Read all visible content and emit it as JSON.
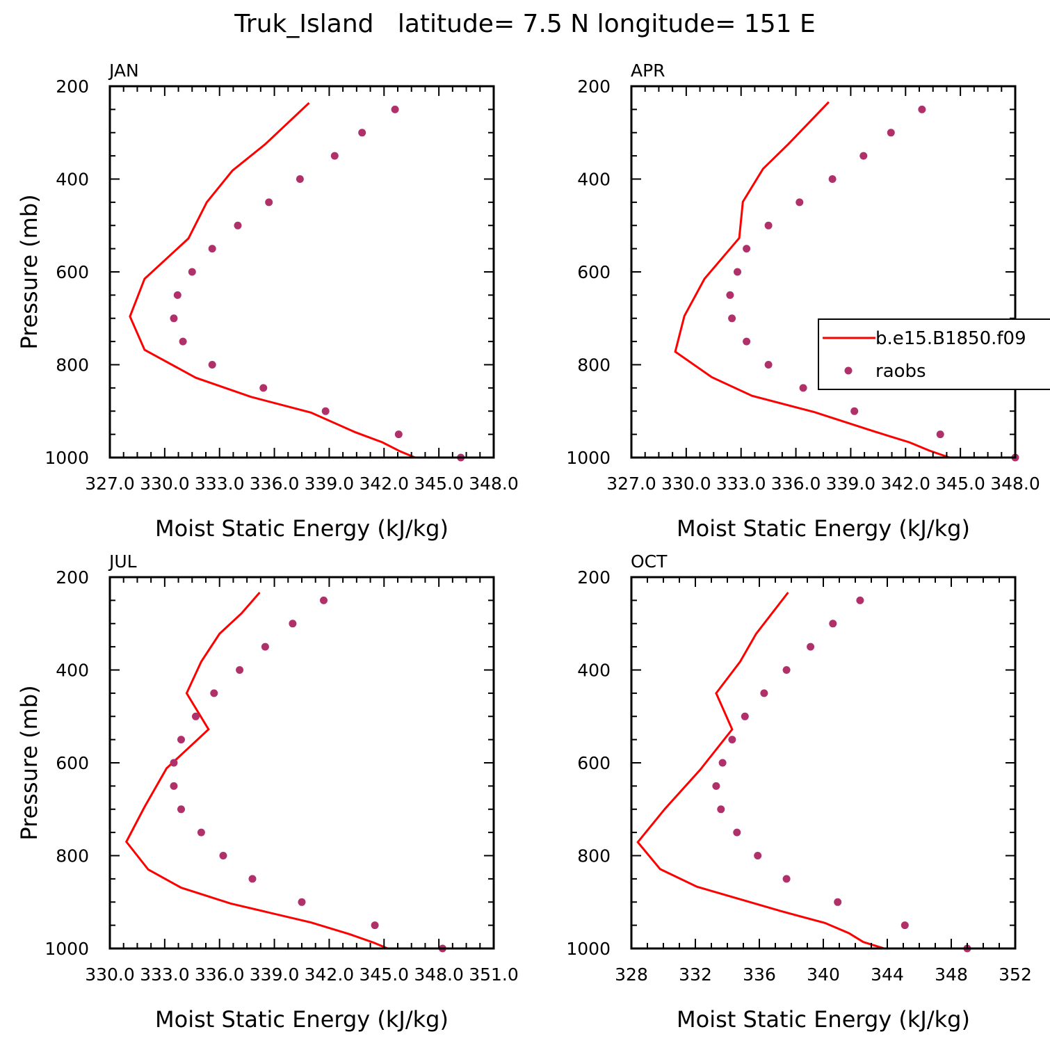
{
  "figure": {
    "title": "Truk_Island   latitude= 7.5 N longitude= 151 E"
  },
  "colors": {
    "model_line": "#ff0000",
    "obs_marker": "#b0306a",
    "axis": "#000000"
  },
  "legend": {
    "model": "b.e15.B1850.f09",
    "obs": "raobs"
  },
  "chart_data": [
    {
      "type": "line",
      "panel": "JAN",
      "xlabel": "Moist Static Energy (kJ/kg)",
      "ylabel": "Pressure (mb)",
      "xlim": [
        327,
        348
      ],
      "ylim": [
        200,
        1000
      ],
      "y_inverted": true,
      "xtick_labels": [
        "327.0",
        "330.0",
        "333.0",
        "336.0",
        "339.0",
        "342.0",
        "345.0",
        "348.0"
      ],
      "ytick_labels": [
        "200",
        "400",
        "600",
        "800",
        "1000"
      ],
      "series": [
        {
          "name": "b.e15.B1850.f09",
          "kind": "line",
          "x": [
            337.9,
            335.5,
            333.7,
            332.3,
            331.3,
            328.9,
            328.1,
            328.9,
            331.7,
            334.7,
            338.0,
            340.4,
            341.9,
            342.9,
            343.7
          ],
          "y": [
            236,
            325,
            382,
            450,
            528,
            615,
            696,
            768,
            828,
            869,
            903,
            945,
            967,
            987,
            1000
          ]
        },
        {
          "name": "raobs",
          "kind": "scatter",
          "x": [
            342.6,
            340.8,
            339.3,
            337.4,
            335.7,
            334.0,
            332.6,
            331.5,
            330.7,
            330.5,
            331.0,
            332.6,
            335.4,
            338.8,
            342.8,
            346.2
          ],
          "y": [
            250,
            300,
            350,
            400,
            450,
            500,
            550,
            600,
            650,
            700,
            750,
            800,
            850,
            900,
            950,
            1000
          ]
        }
      ]
    },
    {
      "type": "line",
      "panel": "APR",
      "xlabel": "Moist Static Energy (kJ/kg)",
      "ylabel": "Pressure (mb)",
      "xlim": [
        327,
        348
      ],
      "ylim": [
        200,
        1000
      ],
      "y_inverted": true,
      "xtick_labels": [
        "327.0",
        "330.0",
        "333.0",
        "336.0",
        "339.0",
        "342.0",
        "345.0",
        "348.0"
      ],
      "ytick_labels": [
        "200",
        "400",
        "600",
        "800",
        "1000"
      ],
      "series": [
        {
          "name": "b.e15.B1850.f09",
          "kind": "line",
          "x": [
            337.8,
            335.6,
            334.2,
            333.1,
            332.9,
            331.0,
            329.9,
            329.4,
            331.4,
            333.6,
            337.0,
            340.3,
            342.2,
            343.3,
            344.4
          ],
          "y": [
            234,
            324,
            378,
            449,
            527,
            615,
            695,
            772,
            827,
            867,
            902,
            944,
            967,
            985,
            1000
          ]
        },
        {
          "name": "raobs",
          "kind": "scatter",
          "x": [
            342.9,
            341.2,
            339.7,
            338.0,
            336.2,
            334.5,
            333.3,
            332.8,
            332.4,
            332.5,
            333.3,
            334.5,
            336.4,
            339.2,
            343.9,
            348.0
          ],
          "y": [
            250,
            300,
            350,
            400,
            450,
            500,
            550,
            600,
            650,
            700,
            750,
            800,
            850,
            900,
            950,
            1000
          ]
        }
      ]
    },
    {
      "type": "line",
      "panel": "JUL",
      "xlabel": "Moist Static Energy (kJ/kg)",
      "ylabel": "Pressure (mb)",
      "xlim": [
        330,
        351
      ],
      "ylim": [
        200,
        1000
      ],
      "y_inverted": true,
      "xtick_labels": [
        "330.0",
        "333.0",
        "336.0",
        "339.0",
        "342.0",
        "345.0",
        "348.0",
        "351.0"
      ],
      "ytick_labels": [
        "200",
        "400",
        "600",
        "800",
        "1000"
      ],
      "series": [
        {
          "name": "b.e15.B1850.f09",
          "kind": "line",
          "x": [
            338.2,
            337.2,
            336.0,
            335.0,
            334.2,
            335.4,
            333.1,
            331.9,
            330.9,
            332.1,
            333.9,
            336.6,
            341.0,
            343.1,
            344.4,
            345.2
          ],
          "y": [
            233,
            278,
            322,
            382,
            450,
            528,
            612,
            695,
            770,
            830,
            869,
            903,
            944,
            969,
            987,
            1000
          ]
        },
        {
          "name": "raobs",
          "kind": "scatter",
          "x": [
            341.7,
            340.0,
            338.5,
            337.1,
            335.7,
            334.7,
            333.9,
            333.5,
            333.5,
            333.9,
            335.0,
            336.2,
            337.8,
            340.5,
            344.5,
            348.2
          ],
          "y": [
            250,
            300,
            350,
            400,
            450,
            500,
            550,
            600,
            650,
            700,
            750,
            800,
            850,
            900,
            950,
            1000
          ]
        }
      ]
    },
    {
      "type": "line",
      "panel": "OCT",
      "xlabel": "Moist Static Energy (kJ/kg)",
      "ylabel": "Pressure (mb)",
      "xlim": [
        328,
        352
      ],
      "ylim": [
        200,
        1000
      ],
      "y_inverted": true,
      "xtick_labels": [
        "328",
        "332",
        "336",
        "340",
        "344",
        "348",
        "352"
      ],
      "ytick_labels": [
        "200",
        "400",
        "600",
        "800",
        "1000"
      ],
      "series": [
        {
          "name": "b.e15.B1850.f09",
          "kind": "line",
          "x": [
            337.8,
            335.8,
            334.8,
            333.3,
            334.3,
            332.3,
            330.1,
            328.4,
            329.8,
            332.1,
            337.4,
            340.1,
            341.6,
            342.5,
            343.8
          ],
          "y": [
            233,
            322,
            382,
            450,
            528,
            615,
            699,
            771,
            829,
            867,
            920,
            945,
            967,
            986,
            1000
          ]
        },
        {
          "name": "raobs",
          "kind": "scatter",
          "x": [
            342.3,
            340.6,
            339.2,
            337.7,
            336.3,
            335.1,
            334.3,
            333.7,
            333.3,
            333.6,
            334.6,
            335.9,
            337.7,
            340.9,
            345.1,
            349.0
          ],
          "y": [
            250,
            300,
            350,
            400,
            450,
            500,
            550,
            600,
            650,
            700,
            750,
            800,
            850,
            900,
            950,
            1000
          ]
        }
      ]
    }
  ]
}
